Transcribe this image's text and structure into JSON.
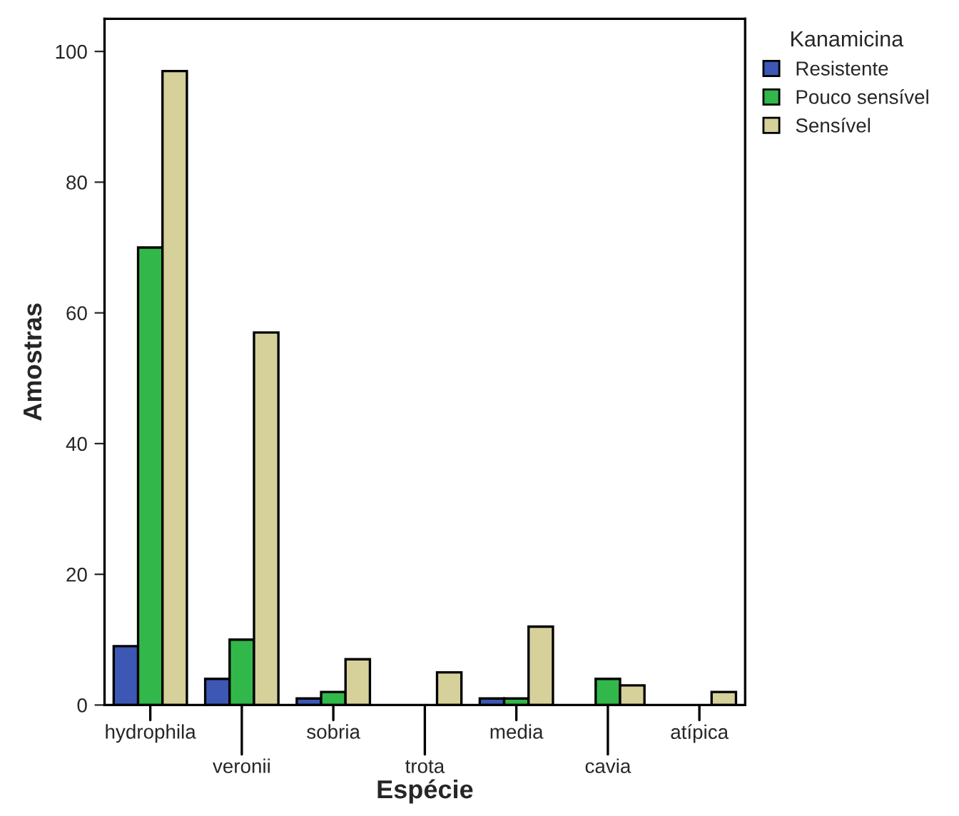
{
  "chart_data": {
    "type": "bar",
    "xlabel": "Espécie",
    "ylabel": "Amostras",
    "legend_title": "Kanamicina",
    "categories": [
      "hydrophila",
      "veronii",
      "sobria",
      "trota",
      "media",
      "cavia",
      "atípica"
    ],
    "series": [
      {
        "name": "Resistente",
        "color": "#3c58b4",
        "values": [
          9,
          4,
          1,
          null,
          1,
          null,
          null
        ]
      },
      {
        "name": "Pouco sensível",
        "color": "#32b84a",
        "values": [
          70,
          10,
          2,
          null,
          1,
          4,
          null
        ]
      },
      {
        "name": "Sensível",
        "color": "#d6d09a",
        "values": [
          97,
          57,
          7,
          5,
          12,
          3,
          2
        ]
      }
    ],
    "ylim": [
      0,
      105
    ],
    "yticks": [
      0,
      20,
      40,
      60,
      80,
      100
    ],
    "grid": false,
    "legend": "top right"
  }
}
